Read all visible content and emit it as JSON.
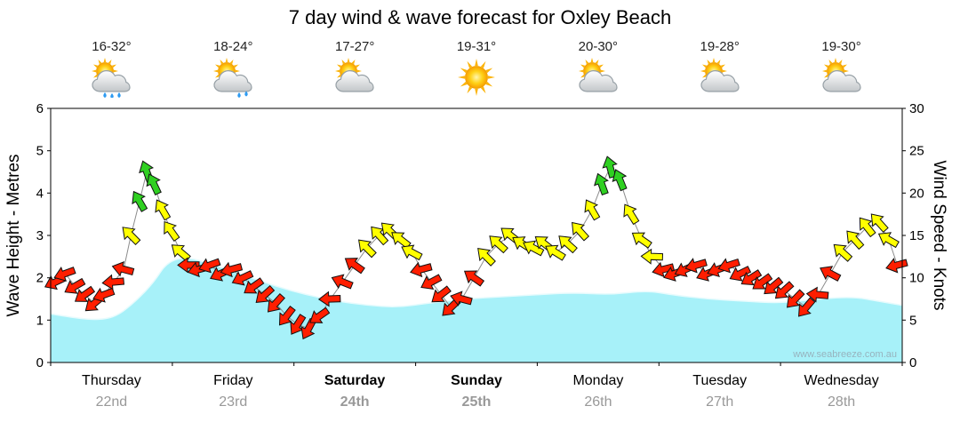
{
  "title": "7 day wind & wave forecast for Oxley Beach",
  "watermark": "www.seabreeze.com.au",
  "axes": {
    "left_label": "Wave Height - Metres",
    "right_label": "Wind Speed - Knots",
    "wave_ticks": [
      "0",
      "1",
      "2",
      "3",
      "4",
      "5",
      "6"
    ],
    "wind_ticks": [
      "0",
      "5",
      "10",
      "15",
      "20",
      "25",
      "30"
    ]
  },
  "days": [
    {
      "name": "Thursday",
      "date": "22nd",
      "temp": "16-32°",
      "icon": "sun-cloud-rain",
      "bold": false
    },
    {
      "name": "Friday",
      "date": "23rd",
      "temp": "18-24°",
      "icon": "sun-cloud-rain-light",
      "bold": false
    },
    {
      "name": "Saturday",
      "date": "24th",
      "temp": "17-27°",
      "icon": "sun-cloud",
      "bold": true
    },
    {
      "name": "Sunday",
      "date": "25th",
      "temp": "19-31°",
      "icon": "sunny",
      "bold": true
    },
    {
      "name": "Monday",
      "date": "26th",
      "temp": "20-30°",
      "icon": "sun-cloud",
      "bold": false
    },
    {
      "name": "Tuesday",
      "date": "27th",
      "temp": "19-28°",
      "icon": "sun-cloud",
      "bold": false
    },
    {
      "name": "Wednesday",
      "date": "28th",
      "temp": "19-30°",
      "icon": "sun-cloud",
      "bold": false
    }
  ],
  "colors": {
    "wave_fill": "#a7f1f9",
    "arrow_red": "#ff1e00",
    "arrow_yellow": "#ffff00",
    "arrow_green": "#2fd021",
    "date_gray": "#999999",
    "watermark_gray": "#97b3be"
  },
  "chart_data": {
    "type": "area+vector",
    "title": "7 day wind & wave forecast for Oxley Beach",
    "x_unit": "days (0 = Thursday 22nd 00:00, 7 = end Wednesday 28th)",
    "wave_ylim": [
      0,
      6
    ],
    "wind_ylim": [
      0,
      30
    ],
    "wave_series": {
      "name": "Wave Height",
      "unit": "metres",
      "points": [
        [
          0,
          1.15
        ],
        [
          0.2,
          1.05
        ],
        [
          0.4,
          1.0
        ],
        [
          0.55,
          1.1
        ],
        [
          0.7,
          1.45
        ],
        [
          0.85,
          1.9
        ],
        [
          0.95,
          2.35
        ],
        [
          1.1,
          2.5
        ],
        [
          1.3,
          2.35
        ],
        [
          1.6,
          2.05
        ],
        [
          1.85,
          1.8
        ],
        [
          2.1,
          1.6
        ],
        [
          2.35,
          1.45
        ],
        [
          2.6,
          1.35
        ],
        [
          2.85,
          1.3
        ],
        [
          3.1,
          1.4
        ],
        [
          3.4,
          1.5
        ],
        [
          3.7,
          1.55
        ],
        [
          4.0,
          1.6
        ],
        [
          4.3,
          1.65
        ],
        [
          4.6,
          1.6
        ],
        [
          4.9,
          1.7
        ],
        [
          5.1,
          1.6
        ],
        [
          5.4,
          1.5
        ],
        [
          5.7,
          1.45
        ],
        [
          6.0,
          1.4
        ],
        [
          6.3,
          1.5
        ],
        [
          6.6,
          1.55
        ],
        [
          6.8,
          1.45
        ],
        [
          7.0,
          1.35
        ]
      ]
    },
    "wind_series": {
      "name": "Wind Speed",
      "unit": "knots",
      "arrow_color_rule": {
        "red": "< 12 kn",
        "yellow": "12 - 18.5 kn",
        "green": ">= 19 kn"
      },
      "dir_convention": "degrees clockwise from up; arrow points where wind blows toward",
      "points": [
        {
          "x": 0.04,
          "kn": 9.5,
          "dir": 245
        },
        {
          "x": 0.12,
          "kn": 10.5,
          "dir": 250
        },
        {
          "x": 0.2,
          "kn": 9,
          "dir": 240
        },
        {
          "x": 0.28,
          "kn": 8,
          "dir": 235
        },
        {
          "x": 0.36,
          "kn": 7,
          "dir": 230
        },
        {
          "x": 0.44,
          "kn": 8,
          "dir": 250
        },
        {
          "x": 0.52,
          "kn": 9.5,
          "dir": 265
        },
        {
          "x": 0.6,
          "kn": 11,
          "dir": 285
        },
        {
          "x": 0.66,
          "kn": 15,
          "dir": 315
        },
        {
          "x": 0.73,
          "kn": 19,
          "dir": 330
        },
        {
          "x": 0.79,
          "kn": 22.5,
          "dir": 340
        },
        {
          "x": 0.85,
          "kn": 21,
          "dir": 335
        },
        {
          "x": 0.92,
          "kn": 18,
          "dir": 330
        },
        {
          "x": 0.99,
          "kn": 15.5,
          "dir": 325
        },
        {
          "x": 1.07,
          "kn": 13,
          "dir": 310
        },
        {
          "x": 1.14,
          "kn": 11.5,
          "dir": 270
        },
        {
          "x": 1.22,
          "kn": 11,
          "dir": 255
        },
        {
          "x": 1.31,
          "kn": 11.5,
          "dir": 250
        },
        {
          "x": 1.4,
          "kn": 10.5,
          "dir": 245
        },
        {
          "x": 1.49,
          "kn": 11,
          "dir": 255
        },
        {
          "x": 1.58,
          "kn": 10,
          "dir": 245
        },
        {
          "x": 1.67,
          "kn": 9,
          "dir": 235
        },
        {
          "x": 1.76,
          "kn": 8,
          "dir": 228
        },
        {
          "x": 1.85,
          "kn": 7,
          "dir": 222
        },
        {
          "x": 1.94,
          "kn": 5.5,
          "dir": 218
        },
        {
          "x": 2.03,
          "kn": 4.5,
          "dir": 212
        },
        {
          "x": 2.12,
          "kn": 4,
          "dir": 208
        },
        {
          "x": 2.21,
          "kn": 5.5,
          "dir": 235
        },
        {
          "x": 2.3,
          "kn": 7.5,
          "dir": 268
        },
        {
          "x": 2.4,
          "kn": 9.5,
          "dir": 292
        },
        {
          "x": 2.5,
          "kn": 11.5,
          "dir": 305
        },
        {
          "x": 2.6,
          "kn": 13.5,
          "dir": 315
        },
        {
          "x": 2.7,
          "kn": 15,
          "dir": 318
        },
        {
          "x": 2.79,
          "kn": 15.5,
          "dir": 314
        },
        {
          "x": 2.88,
          "kn": 14.5,
          "dir": 308
        },
        {
          "x": 2.97,
          "kn": 13,
          "dir": 298
        },
        {
          "x": 3.05,
          "kn": 11,
          "dir": 255
        },
        {
          "x": 3.13,
          "kn": 9.5,
          "dir": 242
        },
        {
          "x": 3.21,
          "kn": 8,
          "dir": 232
        },
        {
          "x": 3.29,
          "kn": 6.5,
          "dir": 226
        },
        {
          "x": 3.38,
          "kn": 7.5,
          "dir": 285
        },
        {
          "x": 3.48,
          "kn": 10,
          "dir": 305
        },
        {
          "x": 3.58,
          "kn": 12.5,
          "dir": 315
        },
        {
          "x": 3.68,
          "kn": 14,
          "dir": 312
        },
        {
          "x": 3.78,
          "kn": 15,
          "dir": 308
        },
        {
          "x": 3.88,
          "kn": 14,
          "dir": 302
        },
        {
          "x": 3.97,
          "kn": 13.5,
          "dir": 298
        },
        {
          "x": 4.06,
          "kn": 14,
          "dir": 308
        },
        {
          "x": 4.15,
          "kn": 13,
          "dir": 302
        },
        {
          "x": 4.25,
          "kn": 14,
          "dir": 312
        },
        {
          "x": 4.35,
          "kn": 15.5,
          "dir": 318
        },
        {
          "x": 4.45,
          "kn": 18,
          "dir": 330
        },
        {
          "x": 4.53,
          "kn": 21,
          "dir": 340
        },
        {
          "x": 4.6,
          "kn": 23,
          "dir": 345
        },
        {
          "x": 4.68,
          "kn": 21.5,
          "dir": 338
        },
        {
          "x": 4.77,
          "kn": 17.5,
          "dir": 328
        },
        {
          "x": 4.86,
          "kn": 14.5,
          "dir": 305
        },
        {
          "x": 4.95,
          "kn": 12.5,
          "dir": 272
        },
        {
          "x": 5.04,
          "kn": 11,
          "dir": 256
        },
        {
          "x": 5.13,
          "kn": 10.5,
          "dir": 250
        },
        {
          "x": 5.22,
          "kn": 11,
          "dir": 246
        },
        {
          "x": 5.31,
          "kn": 11.5,
          "dir": 254
        },
        {
          "x": 5.4,
          "kn": 10.5,
          "dir": 248
        },
        {
          "x": 5.49,
          "kn": 11,
          "dir": 250
        },
        {
          "x": 5.58,
          "kn": 11.5,
          "dir": 252
        },
        {
          "x": 5.67,
          "kn": 10.5,
          "dir": 244
        },
        {
          "x": 5.76,
          "kn": 10,
          "dir": 238
        },
        {
          "x": 5.85,
          "kn": 9.5,
          "dir": 234
        },
        {
          "x": 5.94,
          "kn": 9,
          "dir": 230
        },
        {
          "x": 6.03,
          "kn": 8.5,
          "dir": 228
        },
        {
          "x": 6.12,
          "kn": 7.5,
          "dir": 224
        },
        {
          "x": 6.21,
          "kn": 6.5,
          "dir": 220
        },
        {
          "x": 6.31,
          "kn": 8,
          "dir": 275
        },
        {
          "x": 6.41,
          "kn": 10.5,
          "dir": 298
        },
        {
          "x": 6.51,
          "kn": 13,
          "dir": 312
        },
        {
          "x": 6.61,
          "kn": 14.5,
          "dir": 318
        },
        {
          "x": 6.71,
          "kn": 16,
          "dir": 322
        },
        {
          "x": 6.81,
          "kn": 16.5,
          "dir": 318
        },
        {
          "x": 6.89,
          "kn": 14.5,
          "dir": 300
        },
        {
          "x": 6.96,
          "kn": 11.5,
          "dir": 255
        }
      ]
    }
  }
}
